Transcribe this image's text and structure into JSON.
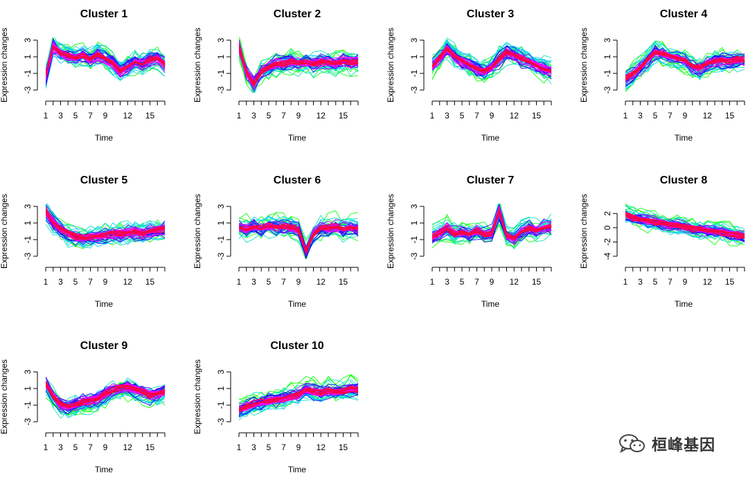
{
  "chart_data": [
    {
      "type": "line",
      "title": "Cluster 1",
      "xlabel": "Time",
      "ylabel": "Expression changes",
      "xlim": [
        1,
        17
      ],
      "ylim": [
        -3,
        3
      ],
      "x": [
        1,
        2,
        3,
        4,
        5,
        6,
        7,
        8,
        9,
        10,
        11,
        12,
        13,
        14,
        15,
        16,
        17
      ],
      "xticks": [
        "1",
        "3",
        "5",
        "7",
        "9",
        "12",
        "15"
      ],
      "yticks": [
        "-3",
        "-1",
        "1",
        "3"
      ],
      "series": [
        {
          "values": [
            -1.5,
            2.2,
            1.3,
            1.0,
            0.8,
            1.1,
            0.6,
            1.2,
            0.7,
            0.2,
            -0.8,
            -0.3,
            0.3,
            0.0,
            0.6,
            0.8,
            0.0
          ]
        }
      ]
    },
    {
      "type": "line",
      "title": "Cluster 2",
      "xlabel": "Time",
      "ylabel": "Expression changes",
      "xlim": [
        1,
        17
      ],
      "ylim": [
        -3,
        3
      ],
      "x": [
        1,
        2,
        3,
        4,
        5,
        6,
        7,
        8,
        9,
        10,
        11,
        12,
        13,
        14,
        15,
        16,
        17
      ],
      "xticks": [
        "1",
        "3",
        "5",
        "7",
        "9",
        "12",
        "15"
      ],
      "yticks": [
        "-3",
        "-1",
        "1",
        "3"
      ],
      "series": [
        {
          "values": [
            2.2,
            -0.8,
            -2.3,
            -0.8,
            -0.3,
            0.2,
            0.1,
            0.5,
            0.3,
            0.4,
            0.2,
            0.4,
            0.3,
            0.2,
            0.5,
            0.3,
            0.4
          ]
        }
      ]
    },
    {
      "type": "line",
      "title": "Cluster 3",
      "xlabel": "Time",
      "ylabel": "Expression changes",
      "xlim": [
        1,
        17
      ],
      "ylim": [
        -3,
        3
      ],
      "x": [
        1,
        2,
        3,
        4,
        5,
        6,
        7,
        8,
        9,
        10,
        11,
        12,
        13,
        14,
        15,
        16,
        17
      ],
      "xticks": [
        "1",
        "3",
        "5",
        "7",
        "9",
        "12",
        "15"
      ],
      "yticks": [
        "-3",
        "-1",
        "1",
        "3"
      ],
      "series": [
        {
          "values": [
            -0.2,
            0.8,
            1.9,
            1.0,
            0.4,
            0.0,
            -0.5,
            -0.8,
            -0.3,
            0.7,
            1.5,
            1.2,
            0.7,
            0.4,
            -0.1,
            -0.5,
            -0.8
          ]
        }
      ]
    },
    {
      "type": "line",
      "title": "Cluster 4",
      "xlabel": "Time",
      "ylabel": "Expression changes",
      "xlim": [
        1,
        17
      ],
      "ylim": [
        -3,
        3
      ],
      "x": [
        1,
        2,
        3,
        4,
        5,
        6,
        7,
        8,
        9,
        10,
        11,
        12,
        13,
        14,
        15,
        16,
        17
      ],
      "xticks": [
        "1",
        "3",
        "5",
        "7",
        "9",
        "12",
        "15"
      ],
      "yticks": [
        "-3",
        "-1",
        "1",
        "3"
      ],
      "series": [
        {
          "values": [
            -1.8,
            -1.2,
            -0.4,
            0.6,
            1.5,
            1.3,
            1.0,
            0.7,
            0.5,
            -0.3,
            -0.4,
            0.1,
            0.4,
            0.5,
            0.3,
            0.6,
            0.5
          ]
        }
      ]
    },
    {
      "type": "line",
      "title": "Cluster 5",
      "xlabel": "Time",
      "ylabel": "Expression changes",
      "xlim": [
        1,
        17
      ],
      "ylim": [
        -3,
        3
      ],
      "x": [
        1,
        2,
        3,
        4,
        5,
        6,
        7,
        8,
        9,
        10,
        11,
        12,
        13,
        14,
        15,
        16,
        17
      ],
      "xticks": [
        "1",
        "3",
        "5",
        "7",
        "9",
        "12",
        "15"
      ],
      "yticks": [
        "-3",
        "-1",
        "1",
        "3"
      ],
      "series": [
        {
          "values": [
            2.4,
            1.0,
            0.3,
            -0.3,
            -0.7,
            -0.9,
            -0.7,
            -0.6,
            -0.5,
            -0.3,
            -0.4,
            -0.2,
            -0.1,
            -0.3,
            0.0,
            0.1,
            0.2
          ]
        }
      ]
    },
    {
      "type": "line",
      "title": "Cluster 6",
      "xlabel": "Time",
      "ylabel": "Expression changes",
      "xlim": [
        1,
        17
      ],
      "ylim": [
        -3,
        3
      ],
      "x": [
        1,
        2,
        3,
        4,
        5,
        6,
        7,
        8,
        9,
        10,
        11,
        12,
        13,
        14,
        15,
        16,
        17
      ],
      "xticks": [
        "1",
        "3",
        "5",
        "7",
        "9",
        "12",
        "15"
      ],
      "yticks": [
        "-3",
        "-1",
        "1",
        "3"
      ],
      "series": [
        {
          "values": [
            0.5,
            0.3,
            0.6,
            0.4,
            0.7,
            0.5,
            0.6,
            0.5,
            0.2,
            -2.4,
            -0.3,
            0.5,
            0.4,
            0.6,
            0.3,
            0.5,
            0.4
          ]
        }
      ]
    },
    {
      "type": "line",
      "title": "Cluster 7",
      "xlabel": "Time",
      "ylabel": "Expression changes",
      "xlim": [
        1,
        17
      ],
      "ylim": [
        -3,
        3
      ],
      "x": [
        1,
        2,
        3,
        4,
        5,
        6,
        7,
        8,
        9,
        10,
        11,
        12,
        13,
        14,
        15,
        16,
        17
      ],
      "xticks": [
        "1",
        "3",
        "5",
        "7",
        "9",
        "12",
        "15"
      ],
      "yticks": [
        "-3",
        "-1",
        "1",
        "3"
      ],
      "series": [
        {
          "values": [
            -0.7,
            -0.2,
            0.4,
            -0.3,
            -0.1,
            -0.3,
            0.1,
            -0.4,
            -0.2,
            2.4,
            -0.5,
            -0.8,
            0.0,
            0.4,
            0.1,
            0.5,
            0.6
          ]
        }
      ]
    },
    {
      "type": "line",
      "title": "Cluster 8",
      "xlabel": "Time",
      "ylabel": "Expression changes",
      "xlim": [
        1,
        17
      ],
      "ylim": [
        -4,
        3
      ],
      "x": [
        1,
        2,
        3,
        4,
        5,
        6,
        7,
        8,
        9,
        10,
        11,
        12,
        13,
        14,
        15,
        16,
        17
      ],
      "xticks": [
        "1",
        "3",
        "5",
        "7",
        "9",
        "12",
        "15"
      ],
      "yticks": [
        "-4",
        "-2",
        "0",
        "2"
      ],
      "series": [
        {
          "values": [
            1.9,
            1.5,
            1.2,
            1.0,
            0.8,
            0.6,
            0.4,
            0.4,
            0.1,
            -0.1,
            -0.2,
            -0.4,
            -0.5,
            -0.6,
            -0.8,
            -1.0,
            -1.2
          ]
        }
      ]
    },
    {
      "type": "line",
      "title": "Cluster 9",
      "xlabel": "Time",
      "ylabel": "Expression changes",
      "xlim": [
        1,
        17
      ],
      "ylim": [
        -3,
        3
      ],
      "x": [
        1,
        2,
        3,
        4,
        5,
        6,
        7,
        8,
        9,
        10,
        11,
        12,
        13,
        14,
        15,
        16,
        17
      ],
      "xticks": [
        "1",
        "3",
        "5",
        "7",
        "9",
        "12",
        "15"
      ],
      "yticks": [
        "-3",
        "-1",
        "1",
        "3"
      ],
      "series": [
        {
          "values": [
            1.6,
            0.0,
            -0.9,
            -1.2,
            -1.0,
            -0.6,
            -0.5,
            -0.2,
            0.4,
            0.8,
            1.1,
            1.2,
            0.9,
            0.6,
            0.2,
            0.4,
            0.7
          ]
        }
      ]
    },
    {
      "type": "line",
      "title": "Cluster 10",
      "xlabel": "Time",
      "ylabel": "Expression changes",
      "xlim": [
        1,
        17
      ],
      "ylim": [
        -3,
        3
      ],
      "x": [
        1,
        2,
        3,
        4,
        5,
        6,
        7,
        8,
        9,
        10,
        11,
        12,
        13,
        14,
        15,
        16,
        17
      ],
      "xticks": [
        "1",
        "3",
        "5",
        "7",
        "9",
        "12",
        "15"
      ],
      "yticks": [
        "-3",
        "-1",
        "1",
        "3"
      ],
      "series": [
        {
          "values": [
            -1.6,
            -1.2,
            -0.9,
            -0.7,
            -0.5,
            -0.3,
            -0.2,
            0.1,
            0.3,
            0.9,
            0.6,
            0.5,
            0.7,
            0.6,
            0.7,
            0.9,
            0.8
          ]
        }
      ]
    }
  ],
  "colors": {
    "line_palette": [
      "#00ff00",
      "#00e0c0",
      "#00c8ff",
      "#0000ff",
      "#8000ff",
      "#ff00ff",
      "#ff0040"
    ]
  },
  "watermark": {
    "icon": "wechat-icon",
    "text": "桓峰基因"
  }
}
